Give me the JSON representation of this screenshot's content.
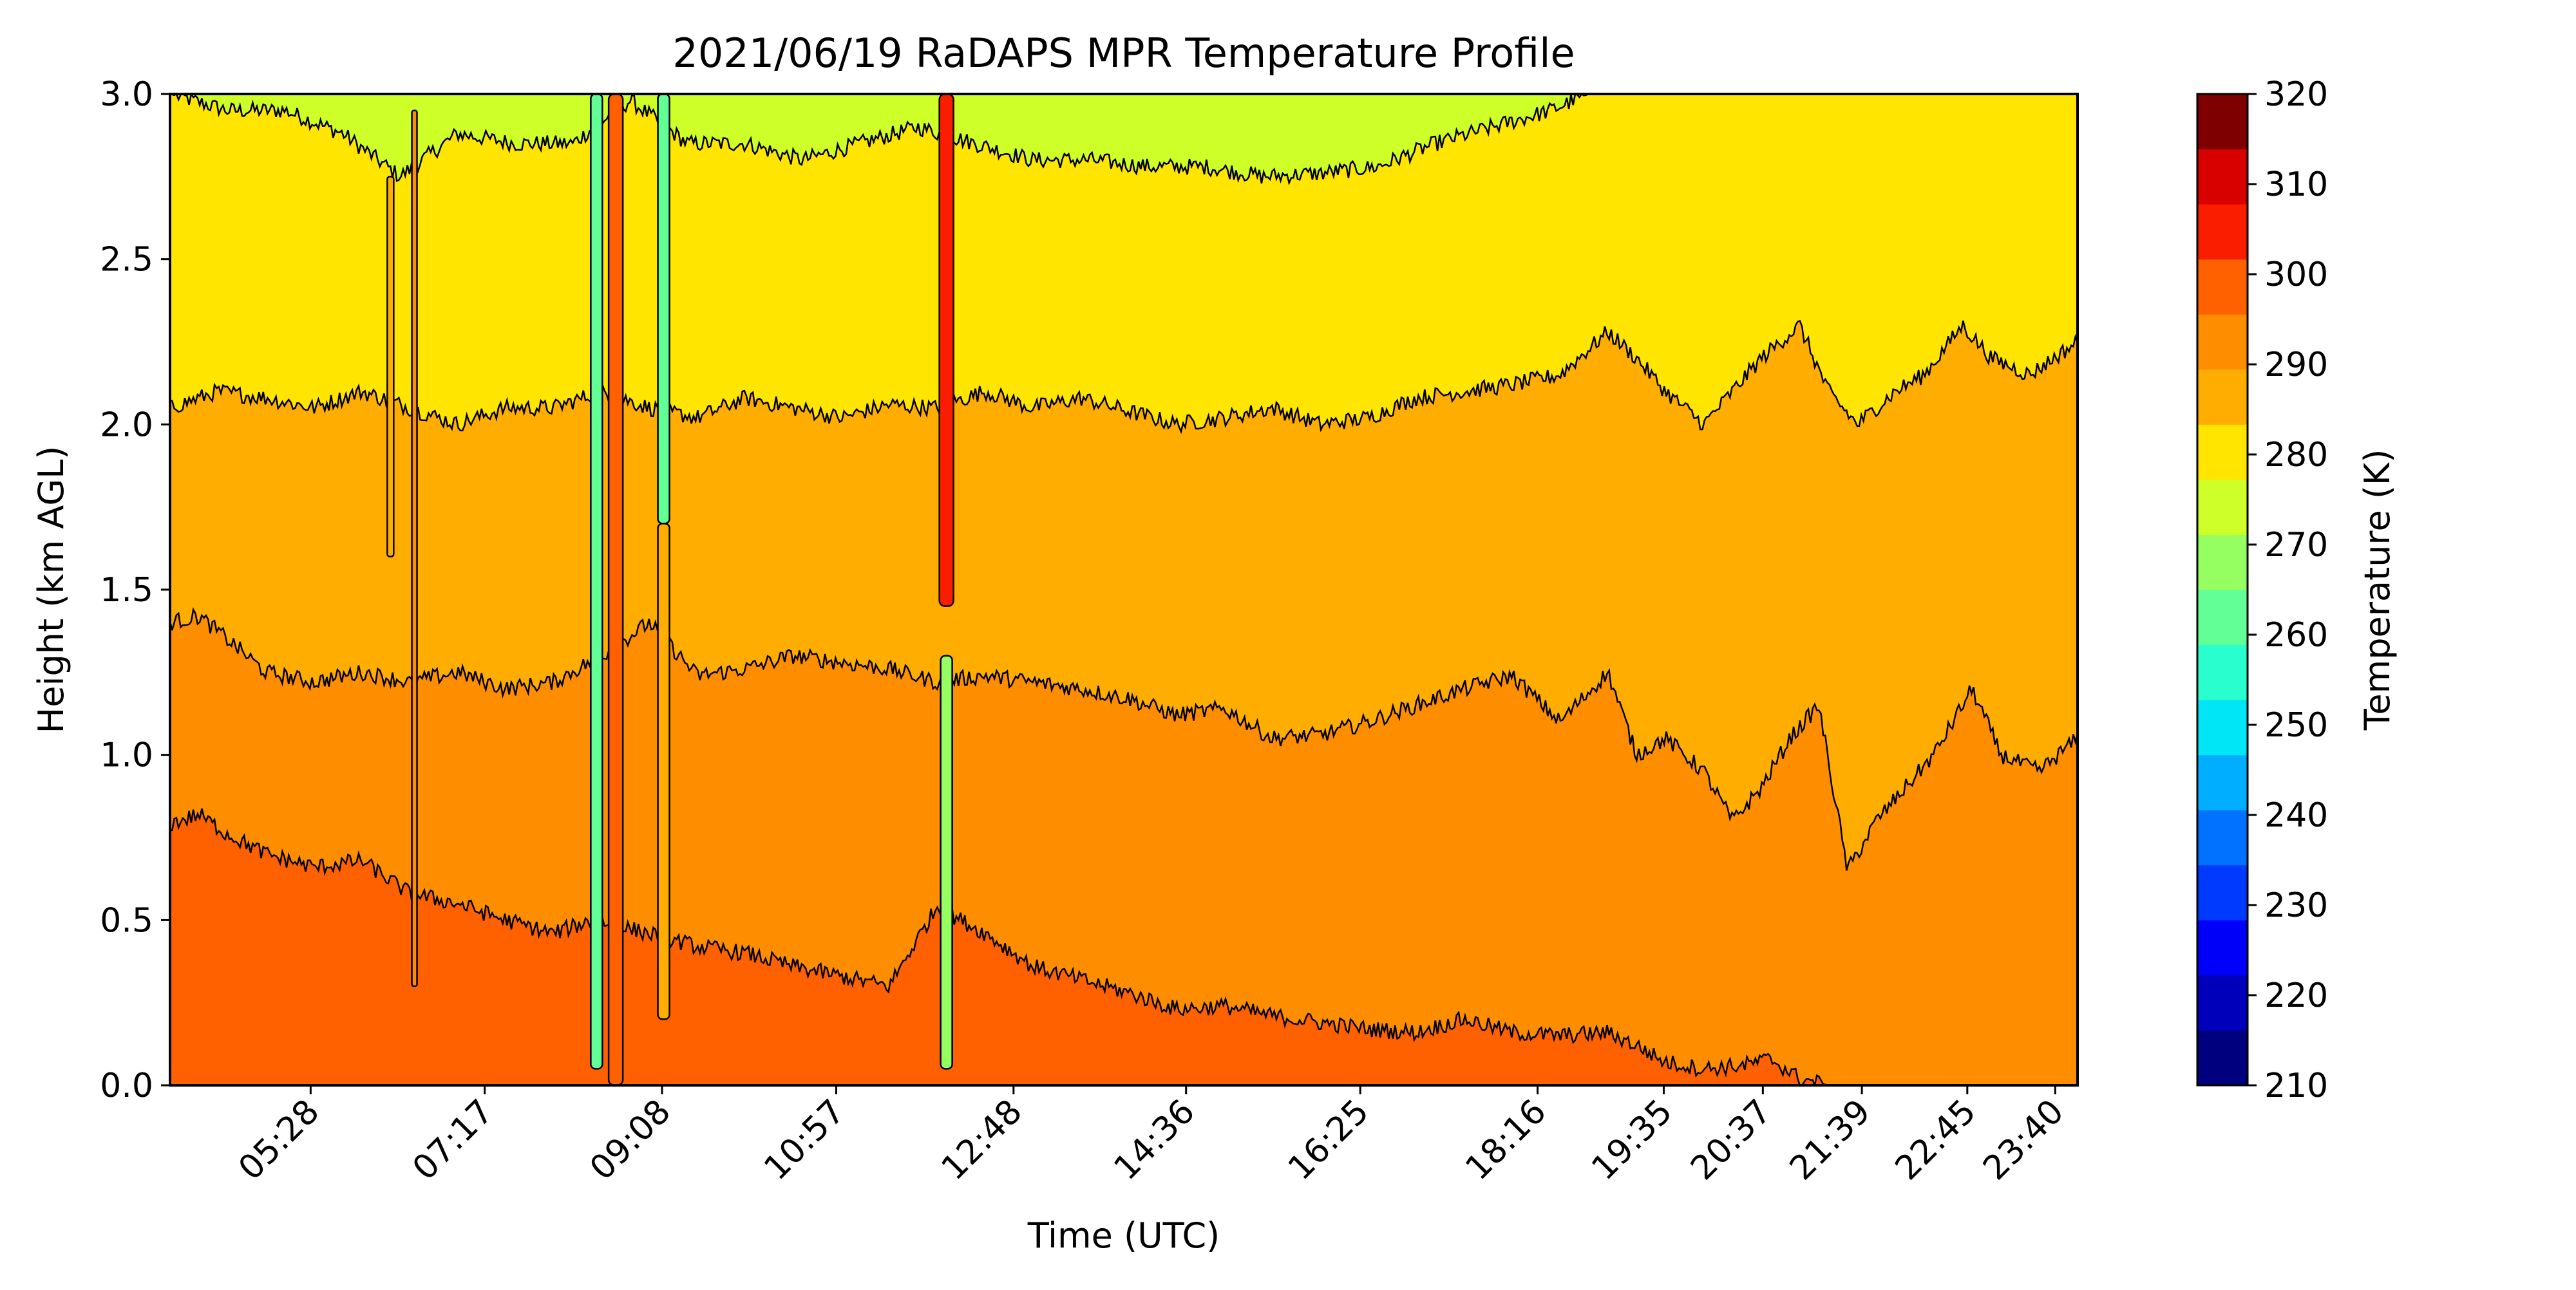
{
  "chart_data": {
    "type": "heatmap",
    "title": "2021/06/19 RaDAPS MPR Temperature Profile",
    "xlabel": "Time (UTC)",
    "ylabel": "Height (km AGL)",
    "colorbar_label": "Temperature (K)",
    "x_tick_labels": [
      "05:28",
      "07:17",
      "09:08",
      "10:57",
      "12:48",
      "14:36",
      "16:25",
      "18:16",
      "19:35",
      "20:37",
      "21:39",
      "22:45",
      "23:40"
    ],
    "x_tick_hours": [
      5.467,
      7.283,
      9.133,
      10.95,
      12.8,
      14.6,
      16.417,
      18.267,
      19.583,
      20.617,
      21.65,
      22.75,
      23.667
    ],
    "x_range_hours": [
      4.0,
      23.9
    ],
    "y_ticks": [
      0.0,
      0.5,
      1.0,
      1.5,
      2.0,
      2.5,
      3.0
    ],
    "y_tick_labels": [
      "0.0",
      "0.5",
      "1.0",
      "1.5",
      "2.0",
      "2.5",
      "3.0"
    ],
    "ylim": [
      0,
      3
    ],
    "colorbar_ticks": [
      210,
      220,
      230,
      240,
      250,
      260,
      270,
      280,
      290,
      300,
      310,
      320
    ],
    "colorbar_tick_labels": [
      "210",
      "220",
      "230",
      "240",
      "250",
      "260",
      "270",
      "280",
      "290",
      "300",
      "310",
      "320"
    ],
    "colorbar_range": [
      210,
      320
    ],
    "level_step": 5,
    "level_colors": [
      "#00007f",
      "#0000bb",
      "#0000fa",
      "#003aff",
      "#0072ff",
      "#00aeff",
      "#00e6f6",
      "#29ffce",
      "#61ff95",
      "#95ff61",
      "#ceff29",
      "#ffe500",
      "#ffad00",
      "#ff8d00",
      "#ff6000",
      "#fa1d00",
      "#d90000",
      "#7f0000"
    ],
    "contour_levels": [
      {
        "temp_low": 295,
        "temp_high": 300,
        "color": "#ff6000",
        "height_km_at": [
          [
            4.0,
            0.79
          ],
          [
            4.3,
            0.82
          ],
          [
            4.6,
            0.76
          ],
          [
            5.0,
            0.7
          ],
          [
            5.5,
            0.66
          ],
          [
            6.0,
            0.68
          ],
          [
            6.5,
            0.58
          ],
          [
            7.0,
            0.55
          ],
          [
            7.5,
            0.5
          ],
          [
            8.0,
            0.46
          ],
          [
            8.4,
            0.5
          ],
          [
            9.0,
            0.46
          ],
          [
            9.5,
            0.42
          ],
          [
            10.0,
            0.4
          ],
          [
            10.5,
            0.36
          ],
          [
            11.0,
            0.33
          ],
          [
            11.5,
            0.3
          ],
          [
            12.0,
            0.54
          ],
          [
            12.5,
            0.46
          ],
          [
            13.0,
            0.36
          ],
          [
            13.5,
            0.32
          ],
          [
            14.0,
            0.28
          ],
          [
            14.5,
            0.23
          ],
          [
            15.0,
            0.24
          ],
          [
            15.5,
            0.21
          ],
          [
            16.0,
            0.19
          ],
          [
            16.5,
            0.17
          ],
          [
            17.0,
            0.16
          ],
          [
            17.5,
            0.2
          ],
          [
            18.0,
            0.16
          ],
          [
            18.5,
            0.15
          ],
          [
            19.0,
            0.16
          ],
          [
            19.3,
            0.12
          ],
          [
            19.6,
            0.07
          ],
          [
            20.0,
            0.05
          ],
          [
            20.4,
            0.06
          ],
          [
            20.7,
            0.08
          ],
          [
            21.0,
            0.02
          ],
          [
            21.3,
            0.0
          ],
          [
            23.9,
            0.0
          ]
        ]
      },
      {
        "temp_low": 290,
        "temp_high": 295,
        "color": "#ff8d00",
        "height_km_at": [
          [
            4.0,
            1.4
          ],
          [
            4.3,
            1.42
          ],
          [
            4.6,
            1.35
          ],
          [
            5.0,
            1.25
          ],
          [
            5.5,
            1.22
          ],
          [
            6.0,
            1.25
          ],
          [
            6.5,
            1.22
          ],
          [
            7.0,
            1.25
          ],
          [
            7.5,
            1.2
          ],
          [
            8.0,
            1.22
          ],
          [
            8.5,
            1.3
          ],
          [
            9.0,
            1.4
          ],
          [
            9.5,
            1.24
          ],
          [
            10.0,
            1.26
          ],
          [
            10.5,
            1.3
          ],
          [
            11.0,
            1.28
          ],
          [
            11.5,
            1.26
          ],
          [
            12.0,
            1.22
          ],
          [
            12.5,
            1.24
          ],
          [
            13.0,
            1.22
          ],
          [
            13.5,
            1.2
          ],
          [
            14.0,
            1.17
          ],
          [
            14.5,
            1.12
          ],
          [
            15.0,
            1.14
          ],
          [
            15.5,
            1.05
          ],
          [
            16.0,
            1.06
          ],
          [
            16.5,
            1.1
          ],
          [
            17.0,
            1.15
          ],
          [
            17.5,
            1.2
          ],
          [
            18.0,
            1.24
          ],
          [
            18.5,
            1.1
          ],
          [
            19.0,
            1.25
          ],
          [
            19.3,
            1.0
          ],
          [
            19.6,
            1.05
          ],
          [
            20.0,
            0.95
          ],
          [
            20.3,
            0.8
          ],
          [
            20.6,
            0.9
          ],
          [
            20.9,
            1.05
          ],
          [
            21.2,
            1.15
          ],
          [
            21.5,
            0.65
          ],
          [
            21.8,
            0.8
          ],
          [
            22.1,
            0.9
          ],
          [
            22.4,
            1.0
          ],
          [
            22.8,
            1.2
          ],
          [
            23.1,
            1.0
          ],
          [
            23.5,
            0.95
          ],
          [
            23.9,
            1.05
          ]
        ]
      },
      {
        "temp_low": 285,
        "temp_high": 290,
        "color": "#ffad00",
        "height_km_at": [
          [
            4.0,
            2.05
          ],
          [
            4.5,
            2.1
          ],
          [
            5.0,
            2.08
          ],
          [
            5.5,
            2.05
          ],
          [
            6.0,
            2.1
          ],
          [
            6.5,
            2.05
          ],
          [
            7.0,
            2.0
          ],
          [
            7.5,
            2.05
          ],
          [
            8.0,
            2.05
          ],
          [
            8.5,
            2.1
          ],
          [
            9.0,
            2.05
          ],
          [
            9.5,
            2.02
          ],
          [
            10.0,
            2.08
          ],
          [
            10.5,
            2.05
          ],
          [
            11.0,
            2.02
          ],
          [
            11.5,
            2.06
          ],
          [
            12.0,
            2.05
          ],
          [
            12.5,
            2.1
          ],
          [
            13.0,
            2.05
          ],
          [
            13.5,
            2.08
          ],
          [
            14.0,
            2.04
          ],
          [
            14.5,
            2.0
          ],
          [
            15.0,
            2.02
          ],
          [
            15.5,
            2.05
          ],
          [
            16.0,
            2.0
          ],
          [
            16.5,
            2.02
          ],
          [
            17.0,
            2.08
          ],
          [
            17.5,
            2.1
          ],
          [
            18.0,
            2.12
          ],
          [
            18.5,
            2.15
          ],
          [
            19.0,
            2.28
          ],
          [
            19.3,
            2.2
          ],
          [
            19.6,
            2.1
          ],
          [
            20.0,
            2.0
          ],
          [
            20.3,
            2.1
          ],
          [
            20.6,
            2.2
          ],
          [
            21.0,
            2.3
          ],
          [
            21.3,
            2.1
          ],
          [
            21.6,
            2.0
          ],
          [
            22.0,
            2.1
          ],
          [
            22.3,
            2.15
          ],
          [
            22.7,
            2.3
          ],
          [
            23.0,
            2.2
          ],
          [
            23.4,
            2.15
          ],
          [
            23.9,
            2.25
          ]
        ]
      },
      {
        "temp_low": 280,
        "temp_high": 285,
        "color": "#ffe500",
        "height_km_at": [
          [
            4.0,
            3.0
          ],
          [
            4.6,
            2.95
          ],
          [
            5.2,
            2.95
          ],
          [
            5.8,
            2.88
          ],
          [
            6.4,
            2.75
          ],
          [
            7.0,
            2.88
          ],
          [
            7.6,
            2.85
          ],
          [
            8.2,
            2.85
          ],
          [
            8.8,
            2.98
          ],
          [
            9.4,
            2.85
          ],
          [
            10.0,
            2.85
          ],
          [
            10.6,
            2.8
          ],
          [
            11.2,
            2.85
          ],
          [
            11.8,
            2.9
          ],
          [
            12.4,
            2.85
          ],
          [
            13.0,
            2.8
          ],
          [
            13.6,
            2.8
          ],
          [
            14.2,
            2.78
          ],
          [
            14.8,
            2.78
          ],
          [
            15.4,
            2.75
          ],
          [
            16.0,
            2.76
          ],
          [
            16.6,
            2.78
          ],
          [
            17.2,
            2.85
          ],
          [
            17.8,
            2.9
          ],
          [
            18.4,
            2.95
          ],
          [
            18.8,
            3.0
          ],
          [
            23.9,
            3.0
          ]
        ]
      }
    ]
  }
}
